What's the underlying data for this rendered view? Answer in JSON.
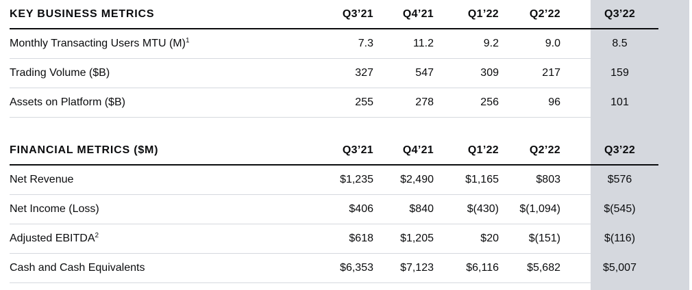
{
  "business": {
    "title": "KEY BUSINESS METRICS",
    "columns": [
      "Q3’21",
      "Q4’21",
      "Q1’22",
      "Q2’22",
      "Q3’22"
    ],
    "rows": [
      {
        "label": "Monthly Transacting Users MTU (M)",
        "note": "1",
        "values": [
          "7.3",
          "11.2",
          "9.2",
          "9.0",
          "8.5"
        ]
      },
      {
        "label": "Trading Volume ($B)",
        "note": "",
        "values": [
          "327",
          "547",
          "309",
          "217",
          "159"
        ]
      },
      {
        "label": "Assets on Platform ($B)",
        "note": "",
        "values": [
          "255",
          "278",
          "256",
          "96",
          "101"
        ]
      }
    ]
  },
  "financial": {
    "title": "FINANCIAL METRICS ($M)",
    "columns": [
      "Q3’21",
      "Q4’21",
      "Q1’22",
      "Q2’22",
      "Q3’22"
    ],
    "rows": [
      {
        "label": "Net Revenue",
        "note": "",
        "values": [
          "$1,235",
          "$2,490",
          "$1,165",
          "$803",
          "$576"
        ]
      },
      {
        "label": "Net Income (Loss)",
        "note": "",
        "values": [
          "$406",
          "$840",
          "$(430)",
          "$(1,094)",
          "$(545)"
        ]
      },
      {
        "label": "Adjusted EBITDA",
        "note": "2",
        "values": [
          "$618",
          "$1,205",
          "$20",
          "$(151)",
          "$(116)"
        ]
      },
      {
        "label": "Cash and Cash Equivalents",
        "note": "",
        "values": [
          "$6,353",
          "$7,123",
          "$6,116",
          "$5,682",
          "$5,007"
        ]
      }
    ]
  }
}
